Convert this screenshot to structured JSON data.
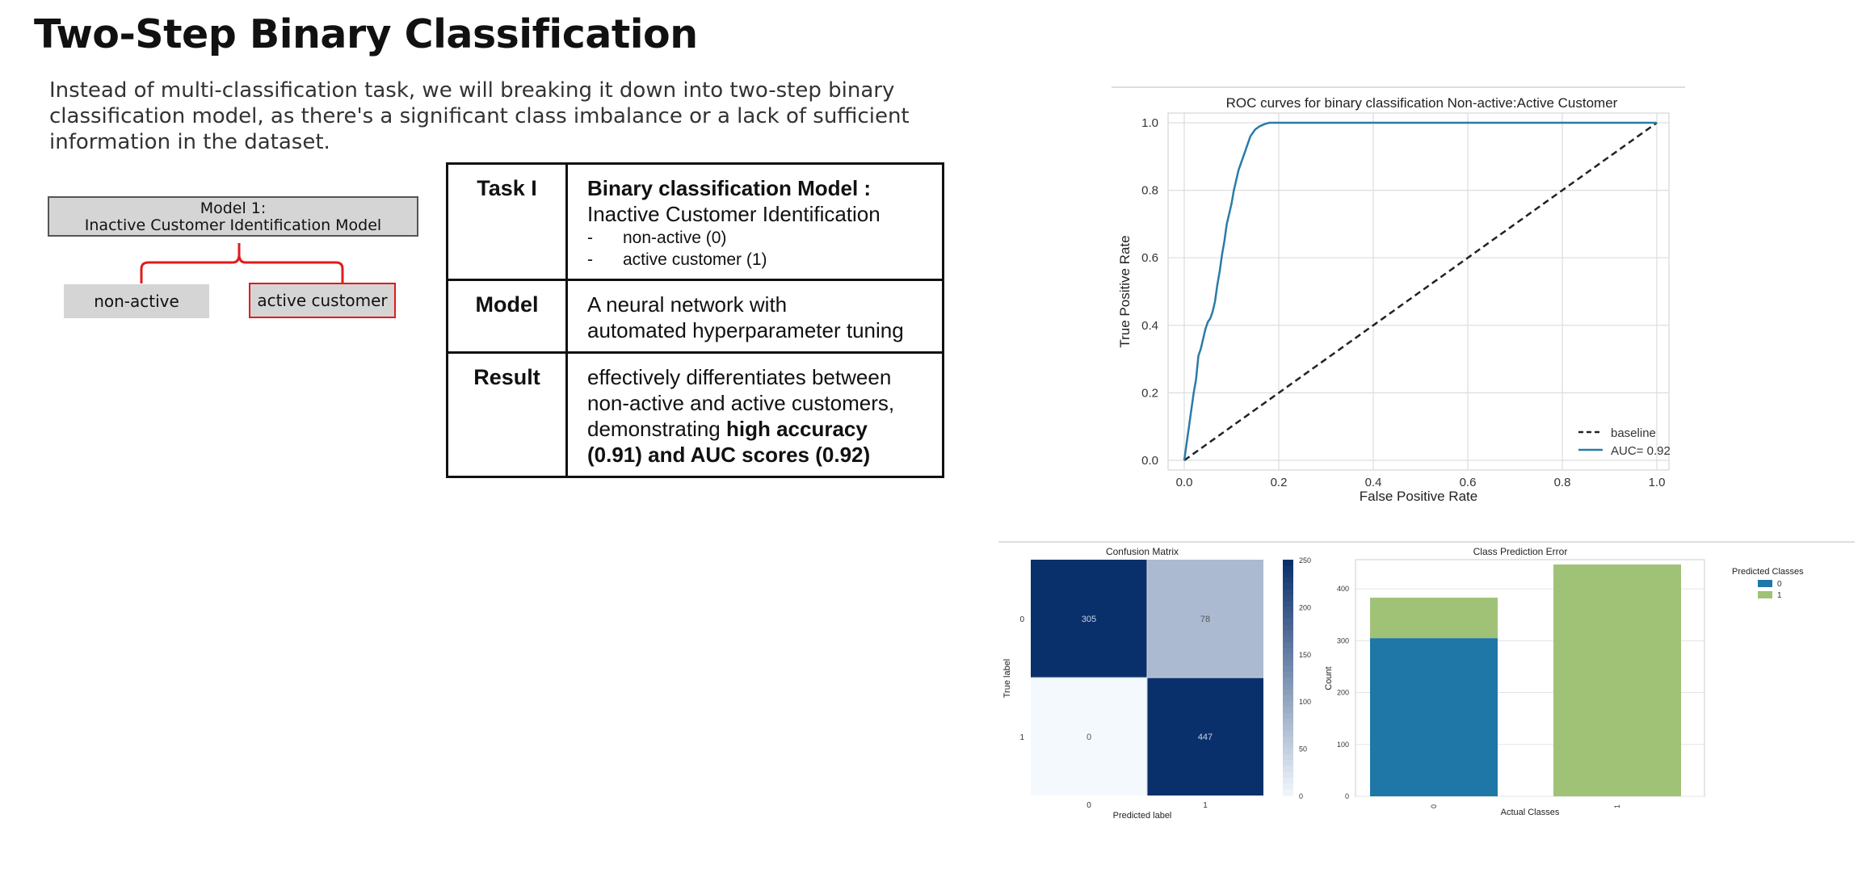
{
  "slide": {
    "title": "Two-Step Binary Classification",
    "intro_lines": [
      "Instead of multi-classification task, we will breaking it down into two-step binary",
      "classification model, as there's a significant class imbalance or a lack of sufficient",
      "information in the dataset."
    ]
  },
  "diagram": {
    "model_line1": "Model 1:",
    "model_line2": "Inactive Customer Identification Model",
    "leaf_left": "non-active",
    "leaf_right": "active customer",
    "accent": "#e01b1b"
  },
  "table": {
    "task_label": "Task I",
    "task_title": "Binary classification Model :",
    "task_subtitle": "Inactive Customer Identification",
    "task_items": [
      "non-active (0)",
      "active customer (1)"
    ],
    "model_label": "Model",
    "model_line1": "A neural network with",
    "model_line2": "automated hyperparameter tuning",
    "result_label": "Result",
    "result_line1": "effectively differentiates between",
    "result_line2": "non-active and active customers,",
    "result_line3a": "demonstrating ",
    "result_line3b": "high accuracy",
    "result_line4": "(0.91)  and AUC scores (0.92)",
    "dash": "-"
  },
  "chart_data": [
    {
      "type": "line",
      "title": "ROC curves for binary classification Non-active:Active Customer",
      "xlabel": "False Positive Rate",
      "ylabel": "True Positive Rate",
      "xlim": [
        0,
        1
      ],
      "ylim": [
        0,
        1
      ],
      "x_ticks": [
        "0.0",
        "0.2",
        "0.4",
        "0.6",
        "0.8",
        "1.0"
      ],
      "y_ticks": [
        "0.0",
        "0.2",
        "0.4",
        "0.6",
        "0.8",
        "1.0"
      ],
      "grid": true,
      "legend_position": "lower-right",
      "series": [
        {
          "name": "baseline",
          "style": "dashed",
          "color": "#222222",
          "x": [
            0,
            1
          ],
          "y": [
            0,
            1
          ]
        },
        {
          "name": "AUC= 0.92",
          "style": "solid",
          "color": "#2a7ba7",
          "x": [
            0,
            0.005,
            0.01,
            0.015,
            0.02,
            0.025,
            0.03,
            0.035,
            0.04,
            0.045,
            0.05,
            0.055,
            0.06,
            0.065,
            0.07,
            0.075,
            0.08,
            0.085,
            0.09,
            0.095,
            0.1,
            0.105,
            0.11,
            0.115,
            0.12,
            0.125,
            0.13,
            0.135,
            0.14,
            0.145,
            0.15,
            0.155,
            0.16,
            0.165,
            0.17,
            0.175,
            0.18,
            0.19,
            0.2,
            0.4,
            0.6,
            0.8,
            1.0
          ],
          "y": [
            0,
            0.05,
            0.1,
            0.15,
            0.2,
            0.24,
            0.31,
            0.33,
            0.36,
            0.39,
            0.41,
            0.42,
            0.44,
            0.47,
            0.52,
            0.56,
            0.61,
            0.65,
            0.7,
            0.73,
            0.76,
            0.8,
            0.83,
            0.86,
            0.88,
            0.9,
            0.92,
            0.94,
            0.96,
            0.97,
            0.98,
            0.985,
            0.99,
            0.993,
            0.996,
            0.998,
            1.0,
            1.0,
            1.0,
            1.0,
            1.0,
            1.0,
            1.0
          ]
        }
      ]
    },
    {
      "type": "heatmap",
      "title": "Confusion Matrix",
      "xlabel": "Predicted label",
      "ylabel": "True label",
      "x_categories": [
        "0",
        "1"
      ],
      "y_categories": [
        "0",
        "1"
      ],
      "values": [
        [
          305,
          78
        ],
        [
          0,
          447
        ]
      ],
      "colorbar_ticks": [
        "0",
        "50",
        "100",
        "150",
        "200",
        "250"
      ],
      "colorbar_range": [
        0,
        250
      ]
    },
    {
      "type": "bar",
      "stacked": true,
      "title": "Class Prediction Error",
      "xlabel": "Actual Classes",
      "ylabel": "Count",
      "categories": [
        "0",
        "1"
      ],
      "ylim": [
        0,
        450
      ],
      "y_ticks": [
        "0",
        "100",
        "200",
        "300",
        "400"
      ],
      "legend_title": "Predicted Classes",
      "series": [
        {
          "name": "0",
          "color": "#1f77a8",
          "values": [
            305,
            0
          ]
        },
        {
          "name": "1",
          "color": "#a0c277",
          "values": [
            78,
            447
          ]
        }
      ]
    }
  ]
}
